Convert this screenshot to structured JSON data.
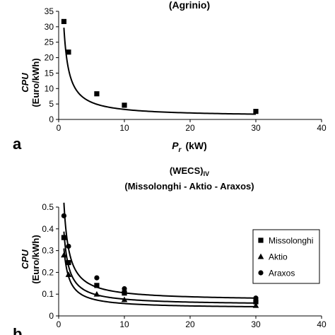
{
  "chart_data": [
    {
      "type": "scatter",
      "panel_label": "a",
      "title": "(Agrinio)",
      "xlabel_symbol": "P",
      "xlabel_sub": "r",
      "xlabel_unit": "(kW)",
      "ylabel_line1": "CPU",
      "ylabel_line2": "(Euro/kWh)",
      "xlim": [
        0,
        40
      ],
      "ylim": [
        0,
        35
      ],
      "xticks": [
        "0",
        "10",
        "20",
        "30",
        "40"
      ],
      "yticks": [
        "0",
        "5",
        "10",
        "15",
        "20",
        "25",
        "30",
        "35"
      ],
      "legend": "none",
      "series": [
        {
          "marker": "square",
          "points": [
            {
              "x": 0.8,
              "y": 31.7
            },
            {
              "x": 1.5,
              "y": 21.8
            },
            {
              "x": 5.8,
              "y": 8.3
            },
            {
              "x": 10,
              "y": 4.6
            },
            {
              "x": 30,
              "y": 2.6
            }
          ],
          "fit": {
            "a": 23.0,
            "b": 0.95,
            "xmin": 0.8,
            "xmax": 30
          }
        }
      ]
    },
    {
      "type": "scatter",
      "panel_label": "b",
      "title_main": "(WECS)",
      "title_sub": "IV",
      "subtitle": "(Missolonghi - Aktio - Araxos)",
      "ylabel_line1": "CPU",
      "ylabel_line2": "(Euro/kWh)",
      "xlim": [
        0,
        40
      ],
      "ylim": [
        0,
        0.5
      ],
      "xticks": [
        "0",
        "10",
        "20",
        "30",
        "40"
      ],
      "yticks": [
        "0",
        "0.1",
        "0.2",
        "0.3",
        "0.4",
        "0.5"
      ],
      "legend": "right",
      "series": [
        {
          "name": "Missolonghi",
          "marker": "square",
          "points": [
            {
              "x": 0.8,
              "y": 0.36
            },
            {
              "x": 1.5,
              "y": 0.245
            },
            {
              "x": 5.8,
              "y": 0.14
            },
            {
              "x": 10,
              "y": 0.105
            },
            {
              "x": 30,
              "y": 0.065
            }
          ],
          "fit": {
            "a": 0.27,
            "b": 0.05,
            "xmin": 0.8,
            "xmax": 30
          }
        },
        {
          "name": "Aktio",
          "marker": "triangle",
          "points": [
            {
              "x": 0.8,
              "y": 0.28
            },
            {
              "x": 1.5,
              "y": 0.19
            },
            {
              "x": 5.8,
              "y": 0.1
            },
            {
              "x": 10,
              "y": 0.075
            },
            {
              "x": 30,
              "y": 0.048
            }
          ],
          "fit": {
            "a": 0.22,
            "b": 0.035,
            "xmin": 0.8,
            "xmax": 30
          }
        },
        {
          "name": "Araxos",
          "marker": "circle",
          "points": [
            {
              "x": 0.8,
              "y": 0.46
            },
            {
              "x": 1.5,
              "y": 0.32
            },
            {
              "x": 5.8,
              "y": 0.175
            },
            {
              "x": 10,
              "y": 0.125
            },
            {
              "x": 30,
              "y": 0.082
            }
          ],
          "fit": {
            "a": 0.36,
            "b": 0.07,
            "xmin": 0.8,
            "xmax": 30
          }
        }
      ]
    }
  ]
}
